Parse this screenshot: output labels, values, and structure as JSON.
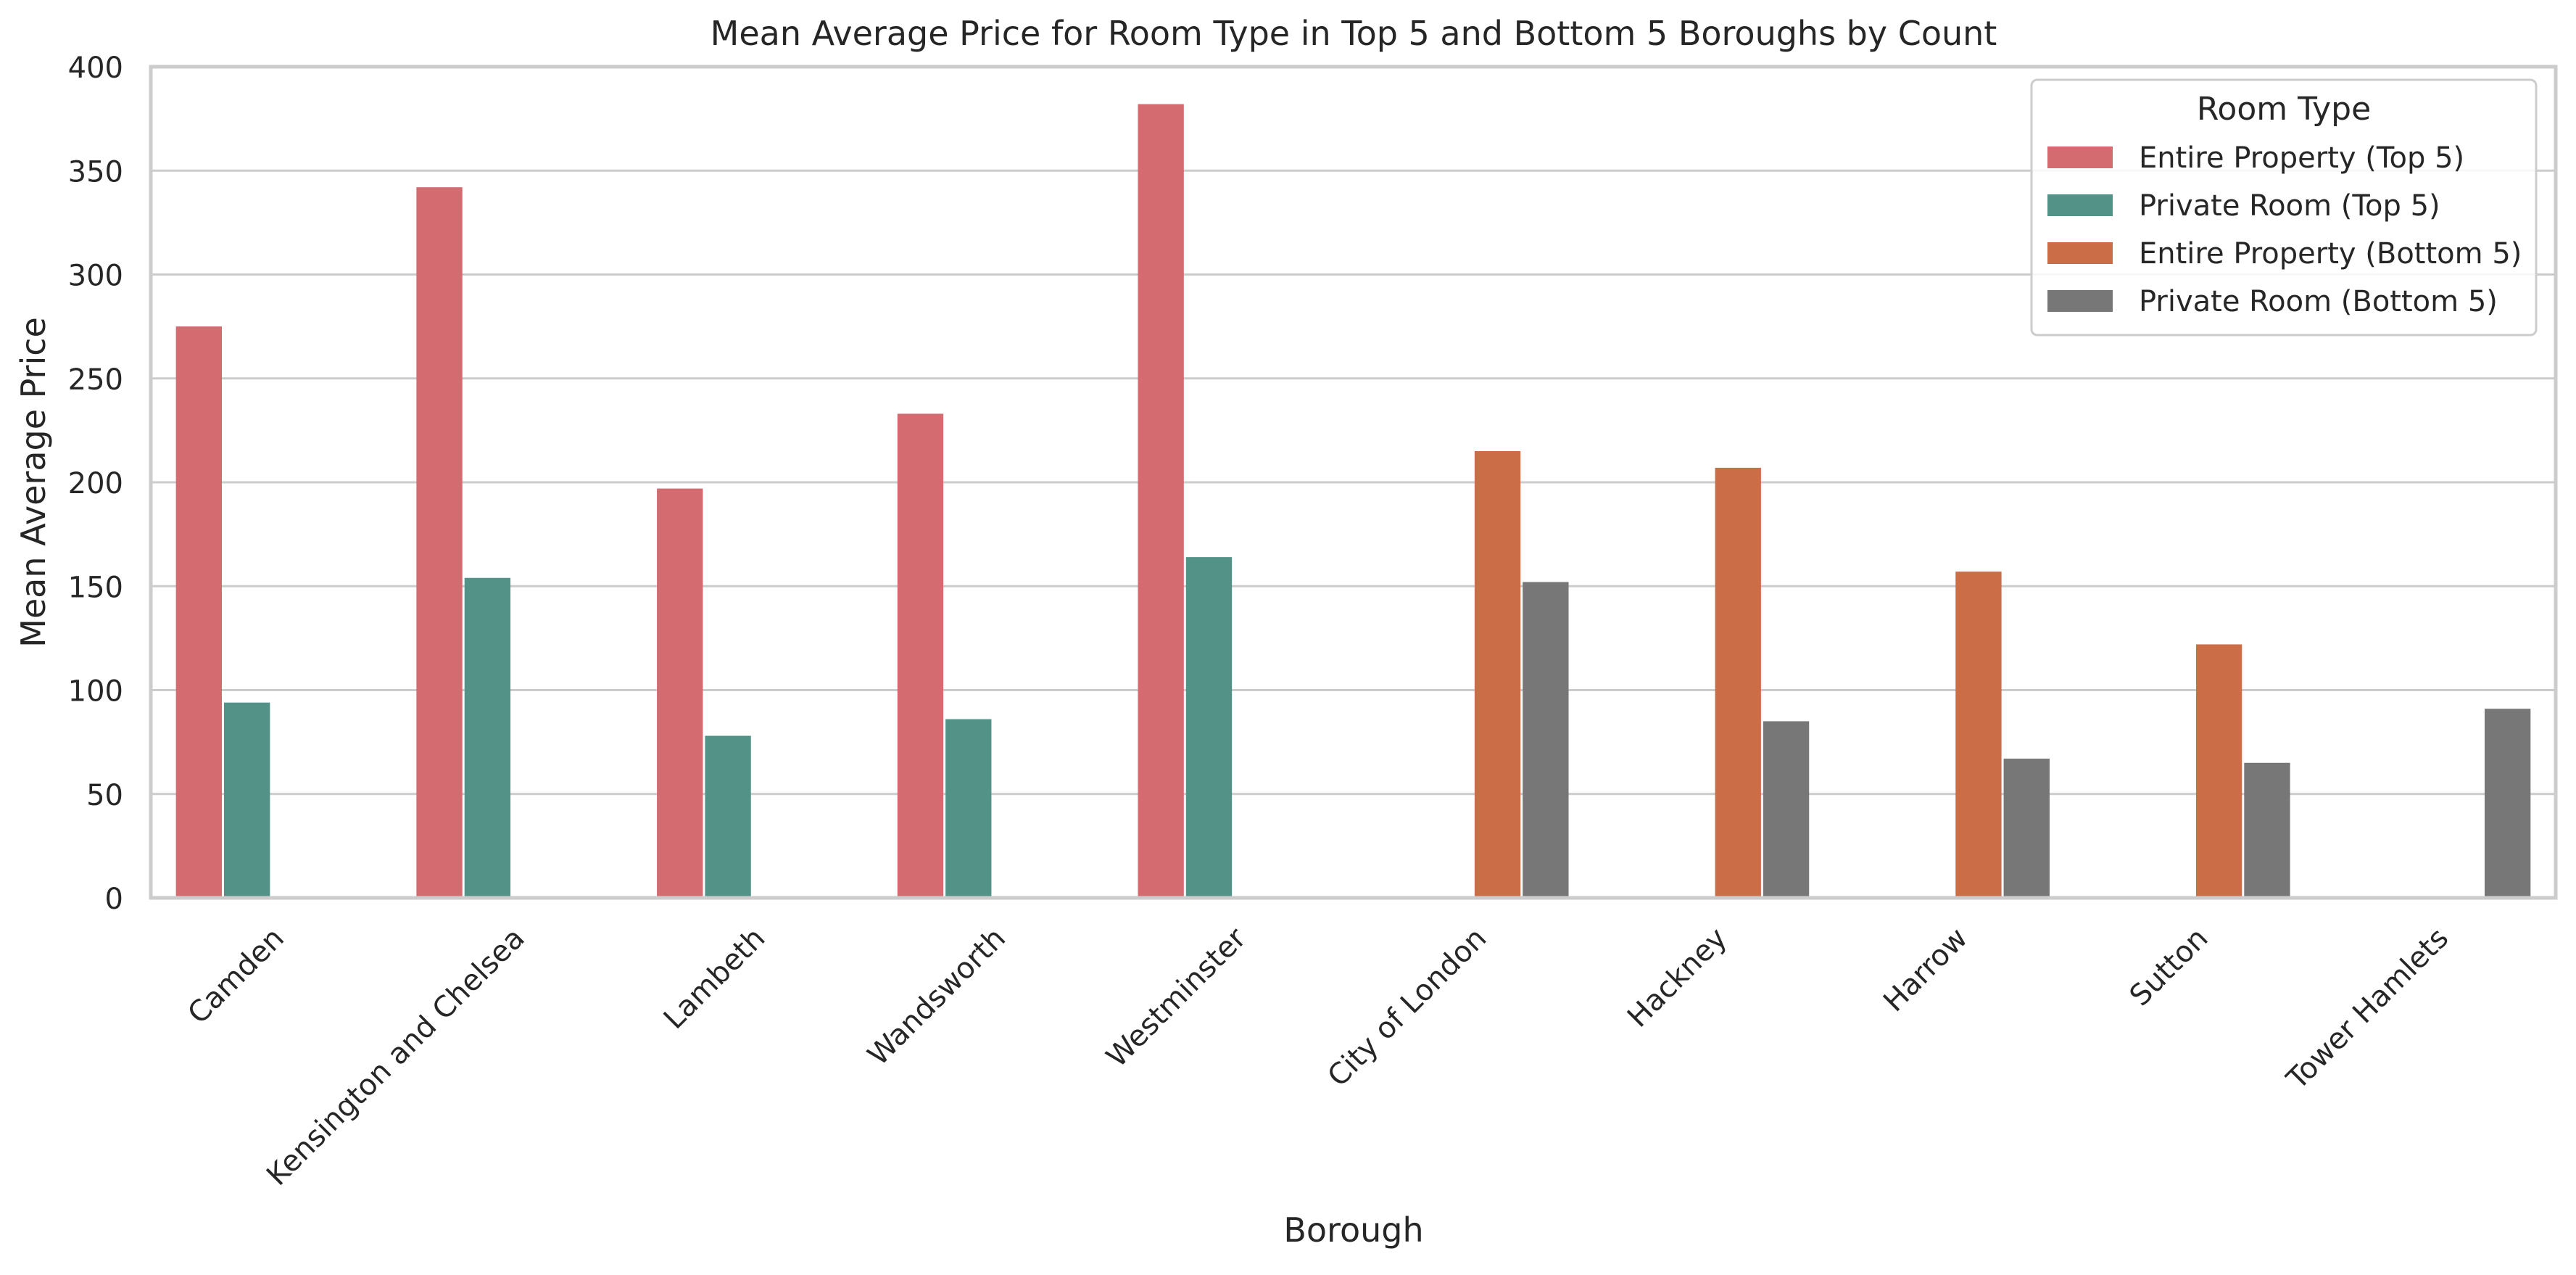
{
  "chart_data": {
    "type": "bar",
    "title": "Mean Average Price for Room Type in Top 5 and Bottom 5 Boroughs by Count",
    "xlabel": "Borough",
    "ylabel": "Mean Average Price",
    "ylim": [
      0,
      400
    ],
    "yticks": [
      0,
      50,
      100,
      150,
      200,
      250,
      300,
      350,
      400
    ],
    "grid": true,
    "legend": {
      "title": "Room Type",
      "position": "top-right"
    },
    "categories": [
      "Camden",
      "Kensington and Chelsea",
      "Lambeth",
      "Wandsworth",
      "Westminster",
      "City of London",
      "Hackney",
      "Harrow",
      "Sutton",
      "Tower Hamlets"
    ],
    "series": [
      {
        "name": "Entire Property (Top 5)",
        "color": "#d46b71",
        "values": [
          275,
          342,
          197,
          233,
          382,
          null,
          null,
          null,
          null,
          null
        ]
      },
      {
        "name": "Private Room (Top 5)",
        "color": "#539287",
        "values": [
          94,
          154,
          78,
          86,
          164,
          null,
          null,
          null,
          null,
          null
        ]
      },
      {
        "name": "Entire Property (Bottom 5)",
        "color": "#cb6d47",
        "values": [
          null,
          null,
          null,
          null,
          null,
          215,
          207,
          157,
          122,
          null
        ]
      },
      {
        "name": "Private Room (Bottom 5)",
        "color": "#777777",
        "values": [
          null,
          null,
          null,
          null,
          null,
          152,
          85,
          67,
          65,
          91
        ]
      }
    ]
  }
}
